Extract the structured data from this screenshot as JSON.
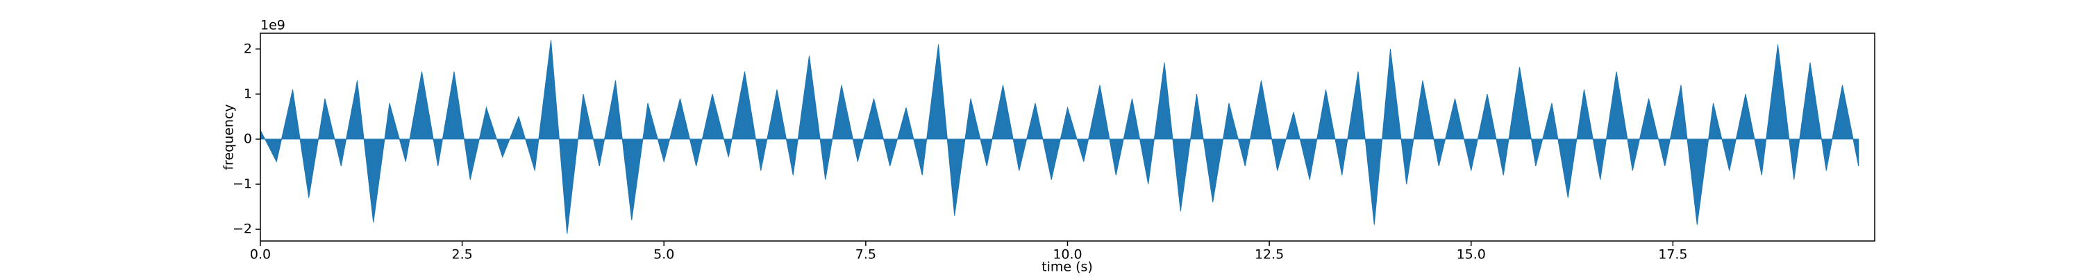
{
  "chart_data": {
    "type": "area",
    "x_label": "time (s)",
    "y_label": "frequency",
    "y_offset_text": "1e9",
    "x": [
      0,
      0.2,
      0.4,
      0.6,
      0.8,
      1.0,
      1.2,
      1.4,
      1.6,
      1.8,
      2.0,
      2.2,
      2.4,
      2.6,
      2.8,
      3.0,
      3.2,
      3.4,
      3.6,
      3.8,
      4.0,
      4.2,
      4.4,
      4.6,
      4.8,
      5.0,
      5.2,
      5.4,
      5.6,
      5.8,
      6.0,
      6.2,
      6.4,
      6.6,
      6.8,
      7.0,
      7.2,
      7.4,
      7.6,
      7.8,
      8.0,
      8.2,
      8.4,
      8.6,
      8.8,
      9.0,
      9.2,
      9.4,
      9.6,
      9.8,
      10.0,
      10.2,
      10.4,
      10.6,
      10.8,
      11.0,
      11.2,
      11.4,
      11.6,
      11.8,
      12.0,
      12.2,
      12.4,
      12.6,
      12.8,
      13.0,
      13.2,
      13.4,
      13.6,
      13.8,
      14.0,
      14.2,
      14.4,
      14.6,
      14.8,
      15.0,
      15.2,
      15.4,
      15.6,
      15.8,
      16.0,
      16.2,
      16.4,
      16.6,
      16.8,
      17.0,
      17.2,
      17.4,
      17.6,
      17.8,
      18.0,
      18.2,
      18.4,
      18.6,
      18.8,
      19.0,
      19.2,
      19.4,
      19.6,
      19.8
    ],
    "series": [
      {
        "color": "#1f77b4",
        "values": [
          0.2,
          -0.5,
          1.1,
          -1.3,
          0.9,
          -0.6,
          1.3,
          -1.85,
          0.8,
          -0.5,
          1.5,
          -0.6,
          1.5,
          -0.9,
          0.7,
          -0.4,
          0.5,
          -0.7,
          2.2,
          -2.1,
          1.0,
          -0.6,
          1.3,
          -1.8,
          0.8,
          -0.5,
          0.9,
          -0.6,
          1.0,
          -0.4,
          1.5,
          -0.7,
          1.1,
          -0.8,
          1.85,
          -0.9,
          1.2,
          -0.5,
          0.9,
          -0.6,
          0.7,
          -0.8,
          2.1,
          -1.7,
          0.9,
          -0.6,
          1.2,
          -0.7,
          0.8,
          -0.9,
          0.7,
          -0.5,
          1.2,
          -0.8,
          0.9,
          -1.0,
          1.7,
          -1.6,
          1.0,
          -1.4,
          0.8,
          -0.6,
          1.3,
          -0.7,
          0.6,
          -0.9,
          1.1,
          -0.8,
          1.5,
          -1.9,
          2.0,
          -1.0,
          1.3,
          -0.6,
          0.9,
          -0.7,
          1.0,
          -0.8,
          1.6,
          -0.6,
          0.8,
          -1.3,
          1.1,
          -0.9,
          1.5,
          -0.7,
          0.9,
          -0.6,
          1.2,
          -1.9,
          0.8,
          -0.7,
          1.0,
          -0.8,
          2.1,
          -0.9,
          1.7,
          -0.7,
          1.2,
          -0.6
        ]
      }
    ],
    "xlim": [
      0,
      20
    ],
    "xticks": [
      {
        "value": 0,
        "label": "0.0"
      },
      2.5,
      {
        "value": 5,
        "label": "5.0"
      },
      7.5,
      {
        "value": 10,
        "label": "10.0"
      },
      12.5,
      {
        "value": 15,
        "label": "15.0"
      },
      17.5
    ],
    "ylim": [
      -2.26,
      2.35
    ],
    "yticks": [
      {
        "value": -2,
        "label": "−2"
      },
      {
        "value": -1,
        "label": "−1"
      },
      0,
      1,
      2
    ]
  }
}
